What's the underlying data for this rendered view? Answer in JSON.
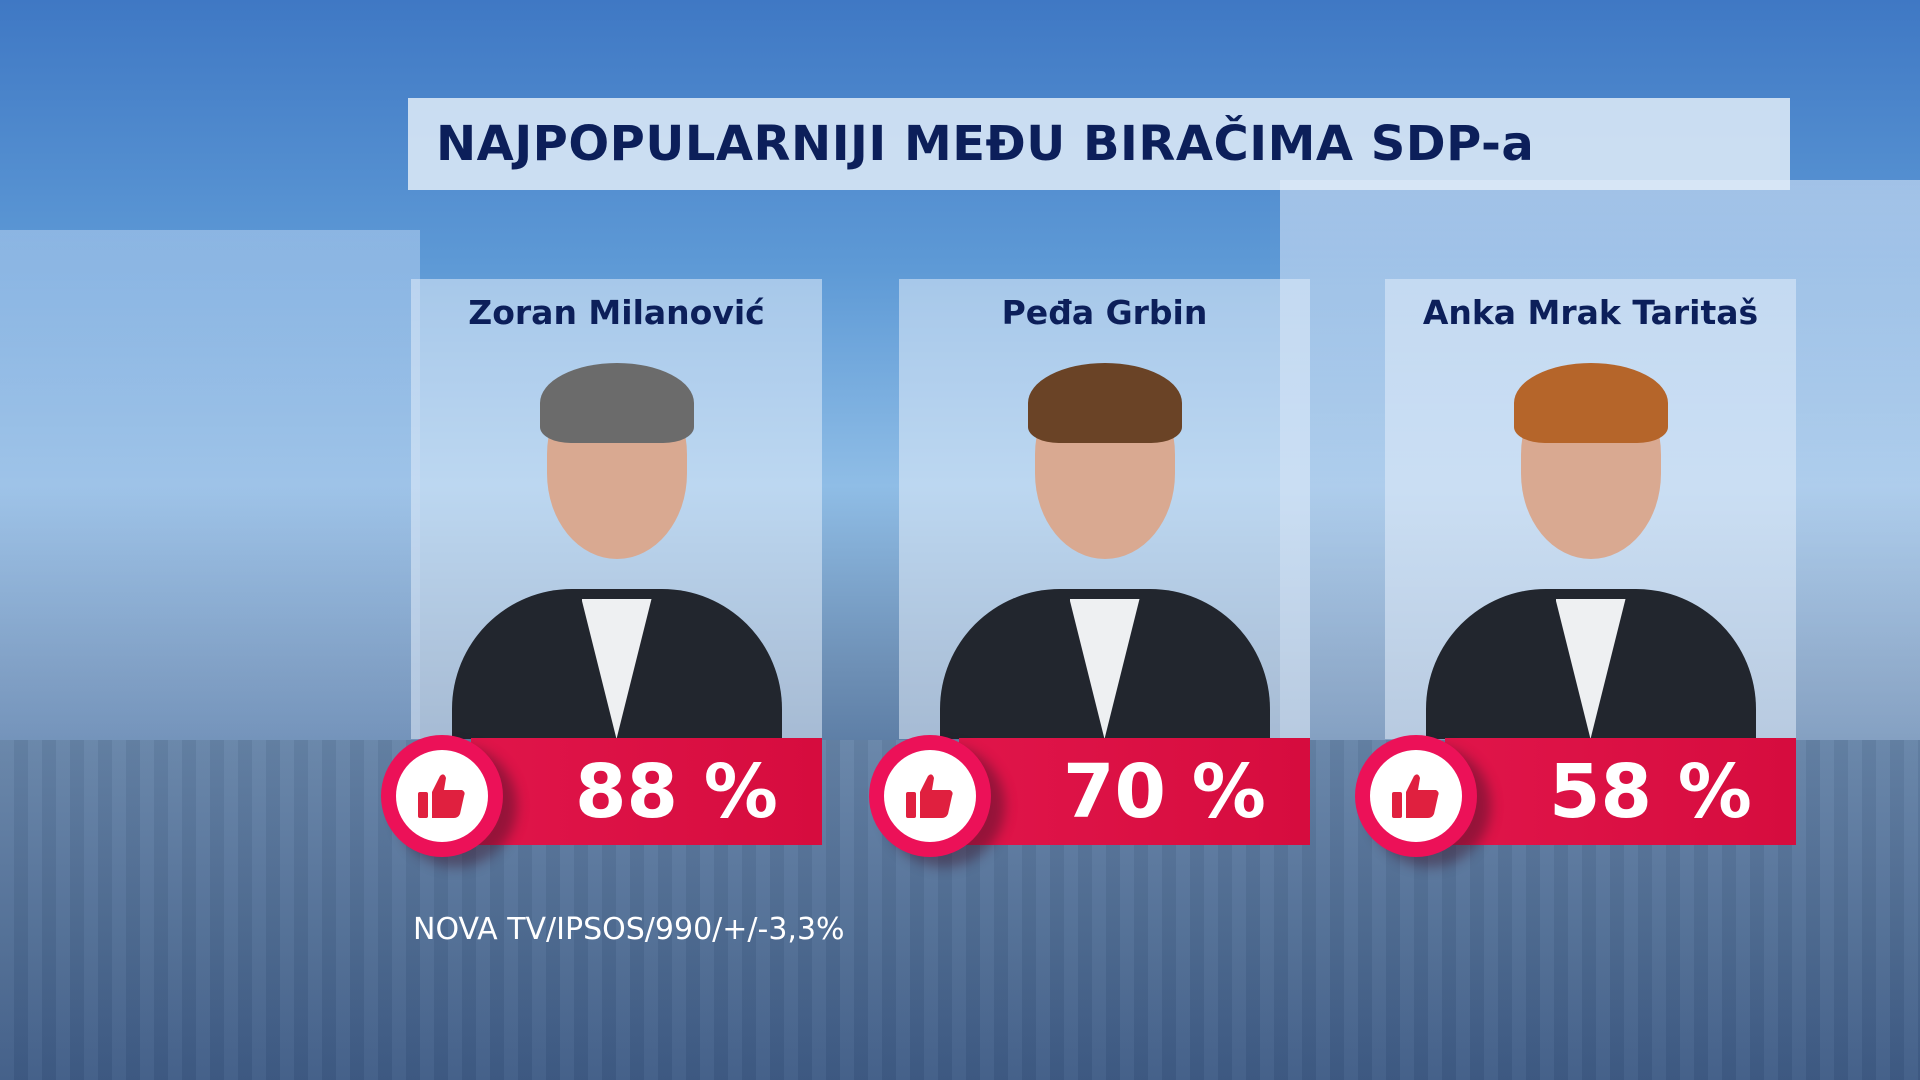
{
  "title": "NAJPOPULARNIJI MEĐU BIRAČIMA SDP-a",
  "candidates": [
    {
      "name": "Zoran Milanović",
      "percent": "88 %",
      "value": 88
    },
    {
      "name": "Peđa Grbin",
      "percent": "70 %",
      "value": 70
    },
    {
      "name": "Anka Mrak Taritaš",
      "percent": "58 %",
      "value": 58
    }
  ],
  "footer": "NOVA TV/IPSOS/990/+/-3,3%",
  "icon": "thumbs-up-icon",
  "colors": {
    "accent": "#e0154a",
    "title": "#0c1f5a"
  }
}
